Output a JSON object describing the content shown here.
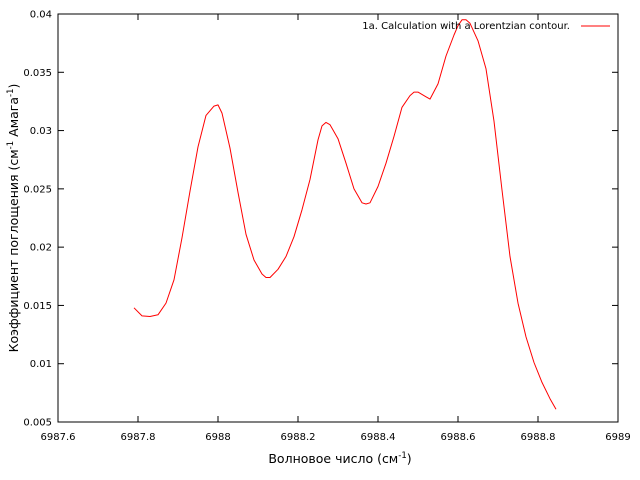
{
  "chart_data": {
    "type": "line",
    "title": "",
    "xlabel": {
      "text": "Волновое число (см",
      "sup": "-1",
      "after": ")"
    },
    "ylabel": {
      "pre": "Коэффициент поглощения (см",
      "sup1": "-1",
      "mid": " Амага",
      "sup2": "-1",
      "after": ")"
    },
    "xlim": [
      6987.6,
      6989
    ],
    "ylim": [
      0.005,
      0.04
    ],
    "xticks": [
      6987.6,
      6987.8,
      6988,
      6988.2,
      6988.4,
      6988.6,
      6988.8,
      6989
    ],
    "xtick_labels": [
      "6987.6",
      "6987.8",
      "6988",
      "6988.2",
      "6988.4",
      "6988.6",
      "6988.8",
      "6989"
    ],
    "yticks": [
      0.005,
      0.01,
      0.015,
      0.02,
      0.025,
      0.03,
      0.035,
      0.04
    ],
    "ytick_labels": [
      "0.005",
      "0.01",
      "0.015",
      "0.02",
      "0.025",
      "0.03",
      "0.035",
      "0.04"
    ],
    "grid": false,
    "legend_position": "top-right",
    "series": [
      {
        "name": "1a. Calculation with a Lorentzian contour.",
        "color": "#ff0000",
        "points": [
          [
            6987.79,
            0.0148
          ],
          [
            6987.81,
            0.0141
          ],
          [
            6987.83,
            0.01405
          ],
          [
            6987.85,
            0.0142
          ],
          [
            6987.87,
            0.0152
          ],
          [
            6987.89,
            0.0172
          ],
          [
            6987.91,
            0.0208
          ],
          [
            6987.93,
            0.0248
          ],
          [
            6987.95,
            0.0286
          ],
          [
            6987.97,
            0.0313
          ],
          [
            6987.99,
            0.0321
          ],
          [
            6988.0,
            0.0322
          ],
          [
            6988.01,
            0.0315
          ],
          [
            6988.03,
            0.0285
          ],
          [
            6988.05,
            0.0247
          ],
          [
            6988.07,
            0.0211
          ],
          [
            6988.09,
            0.0189
          ],
          [
            6988.11,
            0.0177
          ],
          [
            6988.12,
            0.0174
          ],
          [
            6988.13,
            0.0174
          ],
          [
            6988.15,
            0.0181
          ],
          [
            6988.17,
            0.0192
          ],
          [
            6988.19,
            0.0209
          ],
          [
            6988.21,
            0.0232
          ],
          [
            6988.23,
            0.0258
          ],
          [
            6988.25,
            0.0292
          ],
          [
            6988.26,
            0.0304
          ],
          [
            6988.27,
            0.0307
          ],
          [
            6988.28,
            0.0305
          ],
          [
            6988.3,
            0.0293
          ],
          [
            6988.32,
            0.0272
          ],
          [
            6988.34,
            0.025
          ],
          [
            6988.36,
            0.0238
          ],
          [
            6988.37,
            0.0237
          ],
          [
            6988.38,
            0.0238
          ],
          [
            6988.4,
            0.0252
          ],
          [
            6988.42,
            0.0272
          ],
          [
            6988.44,
            0.0295
          ],
          [
            6988.46,
            0.032
          ],
          [
            6988.48,
            0.033
          ],
          [
            6988.49,
            0.0333
          ],
          [
            6988.5,
            0.0333
          ],
          [
            6988.52,
            0.0329
          ],
          [
            6988.53,
            0.0327
          ],
          [
            6988.55,
            0.034
          ],
          [
            6988.57,
            0.0364
          ],
          [
            6988.59,
            0.0382
          ],
          [
            6988.6,
            0.039
          ],
          [
            6988.61,
            0.0395
          ],
          [
            6988.62,
            0.0395
          ],
          [
            6988.63,
            0.0392
          ],
          [
            6988.65,
            0.0377
          ],
          [
            6988.67,
            0.0353
          ],
          [
            6988.69,
            0.0308
          ],
          [
            6988.71,
            0.0249
          ],
          [
            6988.73,
            0.0192
          ],
          [
            6988.75,
            0.0152
          ],
          [
            6988.77,
            0.0123
          ],
          [
            6988.79,
            0.0101
          ],
          [
            6988.81,
            0.0084
          ],
          [
            6988.83,
            0.007
          ],
          [
            6988.845,
            0.0061
          ]
        ]
      }
    ]
  }
}
